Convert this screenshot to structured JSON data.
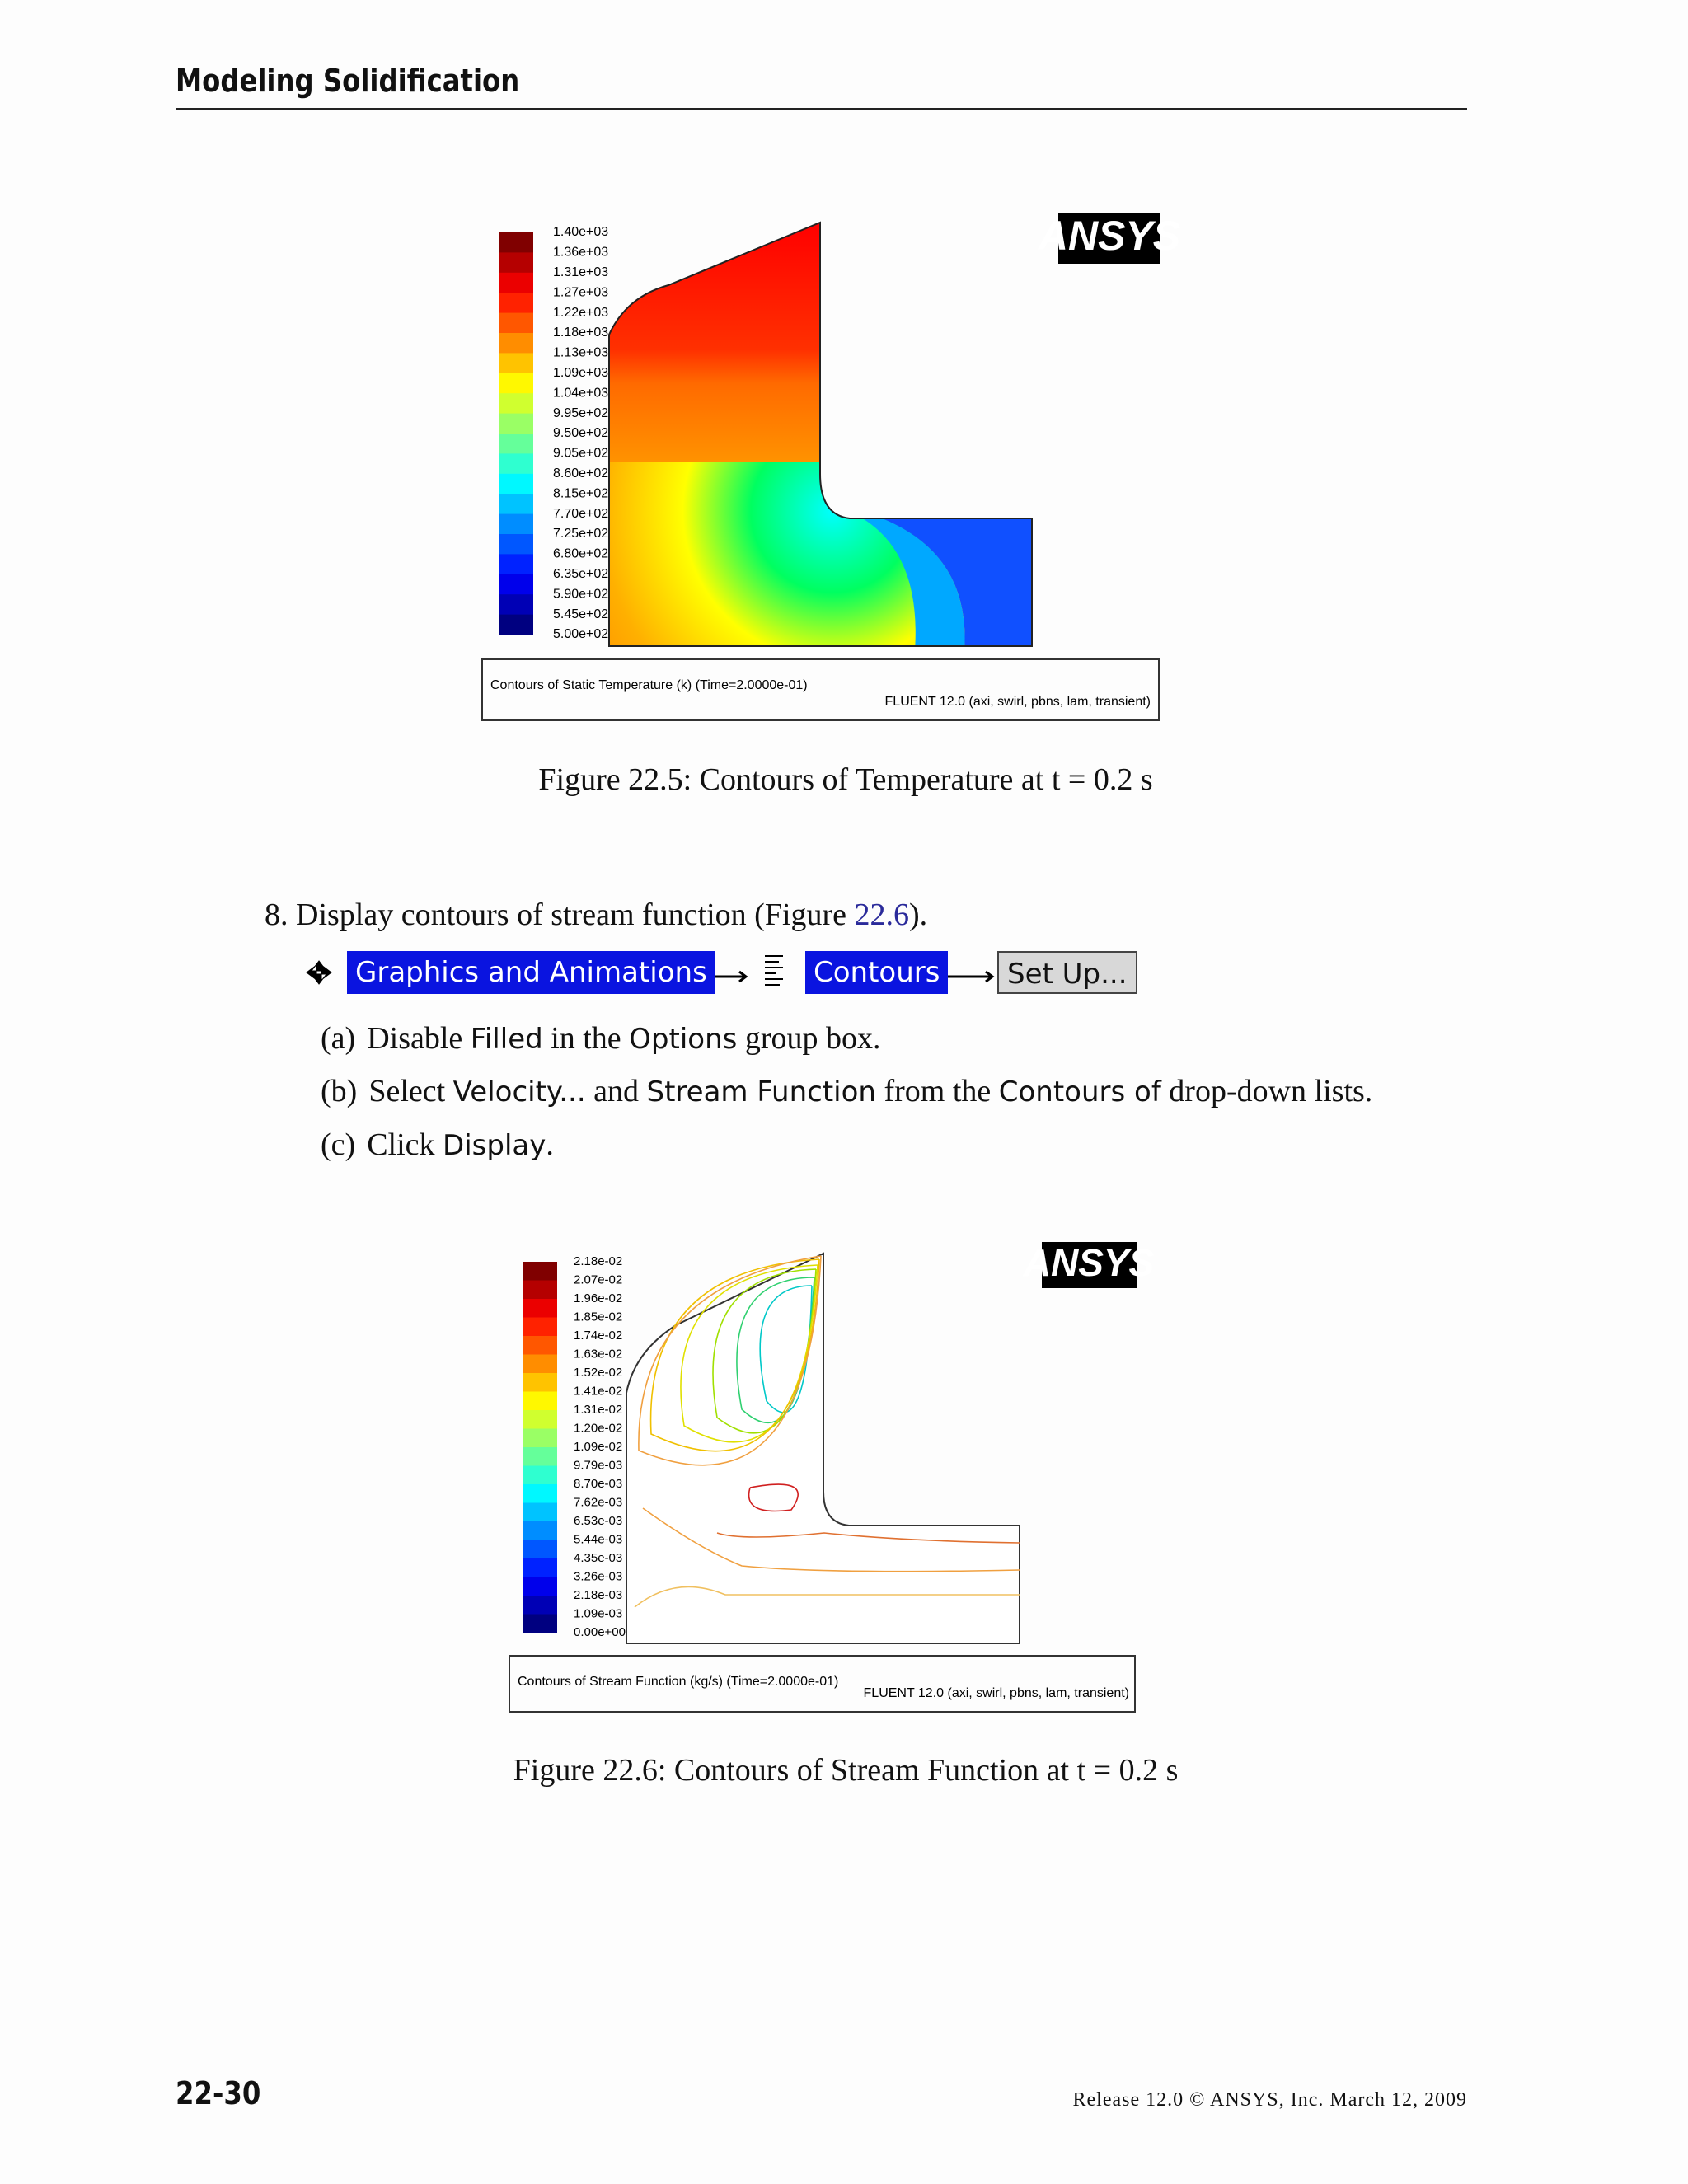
{
  "header": {
    "title": "Modeling Solidification"
  },
  "figures": [
    {
      "legend_labels": [
        "1.40e+03",
        "1.36e+03",
        "1.31e+03",
        "1.27e+03",
        "1.22e+03",
        "1.18e+03",
        "1.13e+03",
        "1.09e+03",
        "1.04e+03",
        "9.95e+02",
        "9.50e+02",
        "9.05e+02",
        "8.60e+02",
        "8.15e+02",
        "7.70e+02",
        "7.25e+02",
        "6.80e+02",
        "6.35e+02",
        "5.90e+02",
        "5.45e+02",
        "5.00e+02"
      ],
      "logo": "ANSYS",
      "box_left": "Contours of Static Temperature (k)  (Time=2.0000e-01)",
      "box_right": "FLUENT 12.0 (axi, swirl, pbns, lam, transient)",
      "caption": "Figure 22.5:  Contours of Temperature at t = 0.2 s"
    },
    {
      "legend_labels": [
        "2.18e-02",
        "2.07e-02",
        "1.96e-02",
        "1.85e-02",
        "1.74e-02",
        "1.63e-02",
        "1.52e-02",
        "1.41e-02",
        "1.31e-02",
        "1.20e-02",
        "1.09e-02",
        "9.79e-03",
        "8.70e-03",
        "7.62e-03",
        "6.53e-03",
        "5.44e-03",
        "4.35e-03",
        "3.26e-03",
        "2.18e-03",
        "1.09e-03",
        "0.00e+00"
      ],
      "logo": "ANSYS",
      "box_left": "Contours of Stream Function (kg/s)  (Time=2.0000e-01)",
      "box_right": "FLUENT 12.0 (axi, swirl, pbns, lam, transient)",
      "caption": "Figure 22.6:  Contours of Stream Function at t = 0.2 s"
    }
  ],
  "step": {
    "text": "8. Display contours of stream function (Figure ",
    "ref": "22.6",
    "end": ").",
    "menu": [
      "Graphics and Animations",
      "Contours",
      "Set Up..."
    ],
    "substeps": [
      {
        "label": "(a)",
        "parts": [
          "Disable ",
          "Filled",
          " in the ",
          "Options",
          " group box."
        ]
      },
      {
        "label": "(b)",
        "parts": [
          "Select ",
          "Velocity...",
          " and ",
          "Stream Function",
          " from the ",
          "Contours of",
          " drop-down lists."
        ]
      },
      {
        "label": "(c)",
        "parts": [
          "Click ",
          "Display",
          "."
        ]
      }
    ]
  },
  "footer": {
    "page": "22-30",
    "release": "Release 12.0 © ANSYS, Inc. March 12, 2009"
  }
}
